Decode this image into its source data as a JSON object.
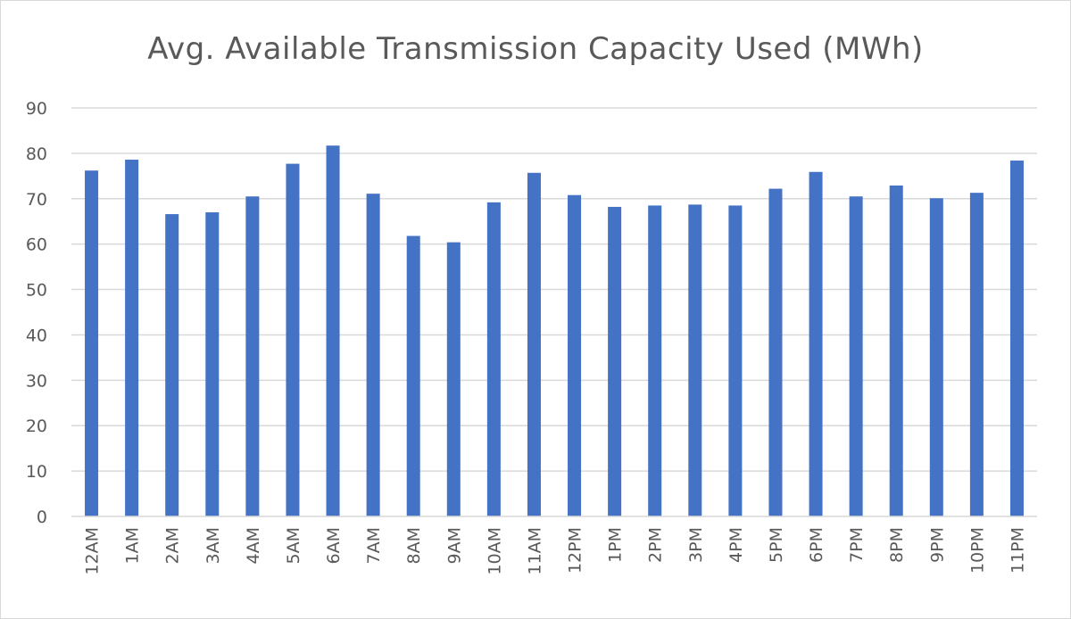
{
  "chart_data": {
    "type": "bar",
    "title": "Avg. Available Transmission Capacity Used (MWh)",
    "xlabel": "",
    "ylabel": "",
    "ylim": [
      0,
      90
    ],
    "yticks": [
      0,
      10,
      20,
      30,
      40,
      50,
      60,
      70,
      80,
      90
    ],
    "grid": true,
    "legend": "none",
    "bar_color": "#4472c4",
    "grid_color": "#d9d9d9",
    "categories": [
      "12AM",
      "1AM",
      "2AM",
      "3AM",
      "4AM",
      "5AM",
      "6AM",
      "7AM",
      "8AM",
      "9AM",
      "10AM",
      "11AM",
      "12PM",
      "1PM",
      "2PM",
      "3PM",
      "4PM",
      "5PM",
      "6PM",
      "7PM",
      "8PM",
      "9PM",
      "10PM",
      "11PM"
    ],
    "values": [
      76.2,
      78.6,
      66.6,
      67.0,
      70.5,
      77.7,
      81.7,
      71.1,
      61.8,
      60.4,
      69.2,
      75.7,
      70.8,
      68.2,
      68.5,
      68.7,
      68.5,
      72.2,
      75.9,
      70.5,
      72.9,
      70.1,
      71.3,
      78.4
    ]
  }
}
